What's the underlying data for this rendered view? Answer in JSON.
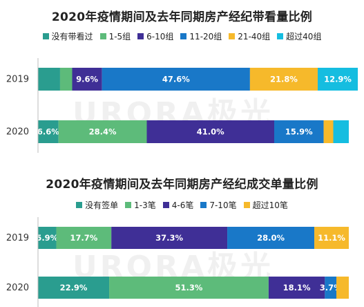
{
  "chart_data": [
    {
      "type": "bar",
      "orientation": "horizontal",
      "stacked": true,
      "title": "2020年疫情期间及去年同期房产经纪带看量比例",
      "categories": [
        "2019",
        "2020"
      ],
      "series": [
        {
          "name": "没有带看过",
          "color": "#2a9d8f",
          "values": [
            7.1,
            6.6
          ],
          "labels": [
            "",
            "6.6%"
          ]
        },
        {
          "name": "1-5组",
          "color": "#5dbb7a",
          "values": [
            3.9,
            28.4
          ],
          "labels": [
            "",
            "28.4%"
          ]
        },
        {
          "name": "6-10组",
          "color": "#3f2f96",
          "values": [
            9.6,
            41.0
          ],
          "labels": [
            "9.6%",
            "41.0%"
          ]
        },
        {
          "name": "11-20组",
          "color": "#1978c8",
          "values": [
            47.6,
            15.9
          ],
          "labels": [
            "47.6%",
            "15.9%"
          ]
        },
        {
          "name": "21-40组",
          "color": "#f6b92b",
          "values": [
            21.8,
            3.1
          ],
          "labels": [
            "21.8%",
            ""
          ]
        },
        {
          "name": "超过40组",
          "color": "#15bde0",
          "values": [
            12.9,
            5.0
          ],
          "labels": [
            "12.9%",
            ""
          ]
        }
      ]
    },
    {
      "type": "bar",
      "orientation": "horizontal",
      "stacked": true,
      "title": "2020年疫情期间及去年同期房产经纪成交单量比例",
      "categories": [
        "2019",
        "2020"
      ],
      "series": [
        {
          "name": "没有签单",
          "color": "#2a9d8f",
          "values": [
            5.9,
            22.9
          ],
          "labels": [
            "5.9%",
            "22.9%"
          ]
        },
        {
          "name": "1-3笔",
          "color": "#5dbb7a",
          "values": [
            17.7,
            51.3
          ],
          "labels": [
            "17.7%",
            "51.3%"
          ]
        },
        {
          "name": "4-6笔",
          "color": "#3f2f96",
          "values": [
            37.3,
            18.1
          ],
          "labels": [
            "37.3%",
            "18.1%"
          ]
        },
        {
          "name": "7-10笔",
          "color": "#1978c8",
          "values": [
            28.0,
            3.7
          ],
          "labels": [
            "28.0%",
            "3.7%"
          ]
        },
        {
          "name": "超过10笔",
          "color": "#f6b92b",
          "values": [
            11.1,
            4.0
          ],
          "labels": [
            "11.1%",
            ""
          ]
        }
      ]
    }
  ],
  "watermark": "URORA极光"
}
